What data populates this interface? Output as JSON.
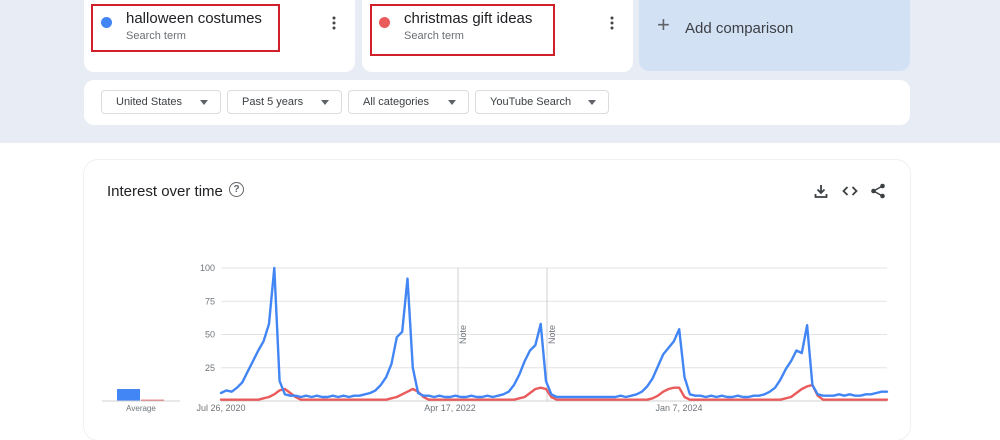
{
  "terms": [
    {
      "name": "halloween costumes",
      "subtitle": "Search term",
      "color": "#4285f4"
    },
    {
      "name": "christmas gift ideas",
      "subtitle": "Search term",
      "color": "#ea5b5b"
    }
  ],
  "add_comparison": {
    "label": "Add comparison",
    "icon": "plus-icon"
  },
  "filters": [
    {
      "label": "United States"
    },
    {
      "label": "Past 5 years"
    },
    {
      "label": "All categories"
    },
    {
      "label": "YouTube Search"
    }
  ],
  "panel": {
    "title": "Interest over time",
    "help_icon": "help-circle-icon",
    "tool_icons": [
      "download-icon",
      "embed-code-icon",
      "share-icon"
    ]
  },
  "chart_data": {
    "type": "line",
    "title": "Interest over time",
    "ylim": [
      0,
      100
    ],
    "y_ticks": [
      100,
      75,
      50,
      25
    ],
    "x_ticks": [
      "Jul 26, 2020",
      "Apr 17, 2022",
      "Jan 7, 2024"
    ],
    "annotations": [
      "Note",
      "Note"
    ],
    "grid": true,
    "average": {
      "label": "Average",
      "values": [
        9,
        1
      ]
    },
    "series": [
      {
        "name": "halloween costumes",
        "color": "#4285f4",
        "values": [
          6,
          8,
          7,
          10,
          14,
          22,
          30,
          38,
          45,
          58,
          100,
          15,
          5,
          4,
          4,
          3,
          4,
          3,
          4,
          3,
          3,
          4,
          3,
          4,
          3,
          4,
          4,
          5,
          6,
          8,
          12,
          18,
          28,
          48,
          52,
          92,
          25,
          6,
          4,
          4,
          3,
          4,
          3,
          3,
          4,
          3,
          3,
          4,
          3,
          3,
          4,
          3,
          4,
          5,
          7,
          12,
          20,
          30,
          38,
          42,
          58,
          15,
          5,
          3,
          3,
          3,
          3,
          3,
          3,
          3,
          3,
          3,
          3,
          3,
          3,
          4,
          3,
          4,
          5,
          7,
          11,
          17,
          26,
          35,
          40,
          45,
          54,
          18,
          5,
          4,
          4,
          3,
          4,
          3,
          4,
          3,
          3,
          4,
          3,
          3,
          4,
          4,
          5,
          7,
          10,
          16,
          24,
          30,
          38,
          36,
          57,
          12,
          5,
          4,
          4,
          4,
          5,
          4,
          5,
          4,
          4,
          5,
          5,
          6,
          7,
          7
        ]
      },
      {
        "name": "christmas gift ideas",
        "color": "#ea5b5b",
        "values": [
          1,
          1,
          1,
          1,
          1,
          1,
          1,
          1,
          2,
          3,
          5,
          8,
          9,
          6,
          3,
          1,
          1,
          1,
          1,
          1,
          1,
          1,
          1,
          1,
          1,
          1,
          1,
          1,
          1,
          1,
          1,
          1,
          2,
          3,
          5,
          7,
          9,
          7,
          3,
          1,
          1,
          1,
          1,
          1,
          1,
          1,
          1,
          1,
          1,
          1,
          1,
          1,
          1,
          1,
          1,
          1,
          2,
          3,
          6,
          9,
          10,
          9,
          3,
          1,
          1,
          1,
          1,
          1,
          1,
          1,
          1,
          1,
          1,
          1,
          1,
          1,
          1,
          1,
          1,
          1,
          1,
          2,
          4,
          7,
          9,
          10,
          10,
          3,
          1,
          1,
          1,
          1,
          1,
          1,
          1,
          1,
          1,
          1,
          1,
          1,
          1,
          1,
          1,
          1,
          1,
          1,
          2,
          3,
          6,
          9,
          11,
          12,
          4,
          1,
          1,
          1,
          1,
          1,
          1,
          1,
          1,
          1,
          1,
          1,
          1,
          1
        ]
      }
    ]
  }
}
